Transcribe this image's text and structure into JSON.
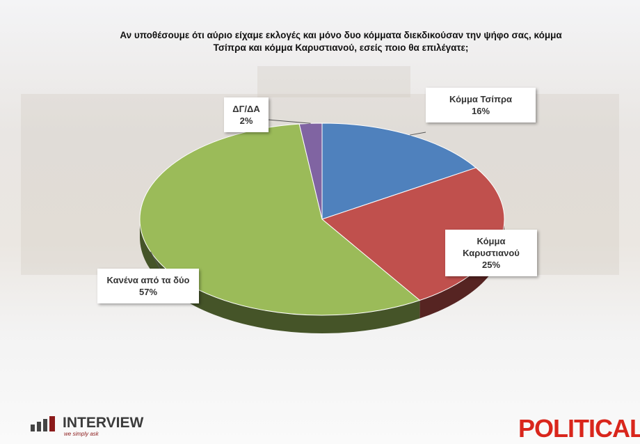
{
  "chart_data": {
    "type": "pie",
    "title": "Αν υποθέσουμε ότι αύριο είχαμε εκλογές και μόνο δυο κόμματα διεκδικούσαν την ψήφο σας, κόμμα Τσίπρα και κόμμα Καρυστιανού, εσείς ποιο θα επιλέγατε;",
    "categories": [
      "Κόμμα Τσίπρα",
      "Κόμμα Καρυστιανού",
      "Κανένα από τα δύο",
      "ΔΓ/ΔΑ"
    ],
    "values": [
      16,
      25,
      57,
      2
    ],
    "value_labels": [
      "16%",
      "25%",
      "57%",
      "2%"
    ],
    "colors": [
      "#4f81bd",
      "#c0504d",
      "#9bbb59",
      "#8064a2"
    ]
  },
  "logos": {
    "left": "INTERVIEW",
    "left_tagline": "we simply ask",
    "right": "POLITICAL"
  }
}
